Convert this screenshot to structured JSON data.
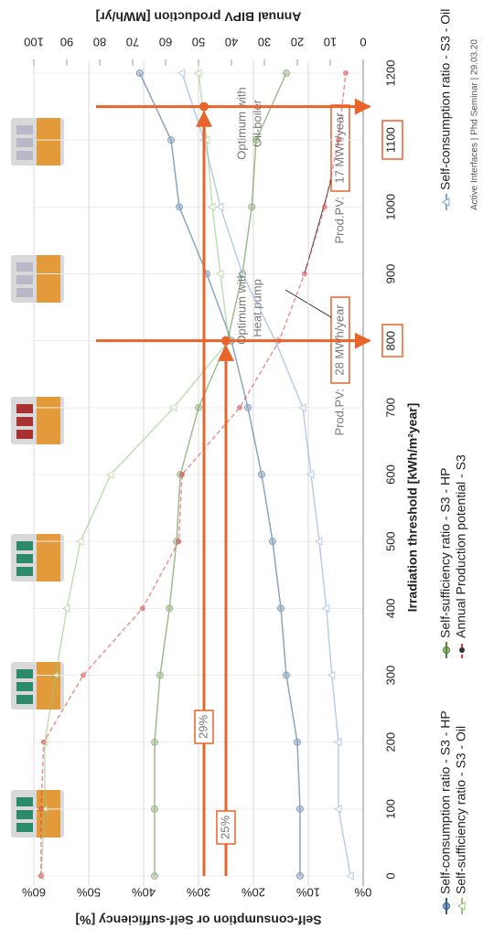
{
  "chart_data": {
    "type": "line",
    "x_label": "Irradiation threshold [kWh/m²year]",
    "y_label": "Self-consumption or Self-sufficiency [%]",
    "y2_label": "Annual BIPV production [MWh/yr]",
    "x": [
      0,
      100,
      200,
      300,
      400,
      500,
      600,
      700,
      800,
      900,
      1000,
      1100,
      1200
    ],
    "xlim": [
      0,
      1200
    ],
    "xticks": [
      0,
      100,
      200,
      300,
      400,
      500,
      600,
      700,
      800,
      900,
      1000,
      1100,
      1200
    ],
    "ylim": [
      0,
      60
    ],
    "yticks": [
      {
        "value": 0,
        "label": "0%"
      },
      {
        "value": 10,
        "label": "10%"
      },
      {
        "value": 20,
        "label": "20%"
      },
      {
        "value": 30,
        "label": "30%"
      },
      {
        "value": 40,
        "label": "40%"
      },
      {
        "value": 50,
        "label": "50%"
      },
      {
        "value": 60,
        "label": "60%"
      }
    ],
    "y2lim": [
      0,
      100
    ],
    "y2ticks": [
      0,
      10,
      20,
      30,
      40,
      50,
      60,
      70,
      80,
      90,
      100
    ],
    "grid": true,
    "series": [
      {
        "name": "Self-consumption ratio - S3 -  HP",
        "color": "#2e5d8f",
        "marker": "circle",
        "values": [
          11.5,
          11.5,
          12,
          14,
          15,
          16.5,
          18.5,
          21,
          24,
          28.5,
          33.5,
          35,
          40.7
        ]
      },
      {
        "name": "Self-sufficiency ratio - S3 -  HP",
        "color": "#548235",
        "marker": "circle",
        "values": [
          38,
          38,
          38,
          37,
          35.3,
          34,
          33.3,
          30,
          24.7,
          22,
          20.3,
          19.5,
          14
        ]
      },
      {
        "name": "Self-consumption ratio - S3 - Oil",
        "color": "#7ea6d8",
        "marker": "triangle",
        "values": [
          2.3,
          4.5,
          4.5,
          5.7,
          6.7,
          8,
          9.5,
          11,
          16,
          22,
          26,
          29,
          33
        ]
      },
      {
        "name": "Self-sufficiency ratio - S3 - Oil",
        "color": "#92c47a",
        "marker": "triangle",
        "values": [
          58.7,
          58,
          58,
          56,
          54,
          51.5,
          46,
          34.5,
          24.5,
          26,
          27.5,
          28.5,
          30
        ]
      },
      {
        "name": "Annual Production potential - S3",
        "color": "#d63c3c",
        "marker": "dot",
        "dashed": true,
        "axis": "y2",
        "values": [
          97.8,
          97.8,
          97,
          85,
          67,
          56,
          55,
          37.5,
          25.5,
          17.8,
          11.7,
          7.5,
          5.3
        ]
      }
    ],
    "markers": [
      {
        "label": "25%",
        "x": 800,
        "y": 25
      },
      {
        "label": "29%",
        "x": 1150,
        "y": 29
      }
    ],
    "annotations": [
      "Optimum with",
      "Heat pump",
      "Optimum with",
      "Oil-boiler",
      "Prod.PV:",
      "28 MWh/year",
      "Prod.PV:",
      "17 MWh/year"
    ],
    "footer": "Active Interfaces | Phd Seminar | 29.03.20"
  }
}
